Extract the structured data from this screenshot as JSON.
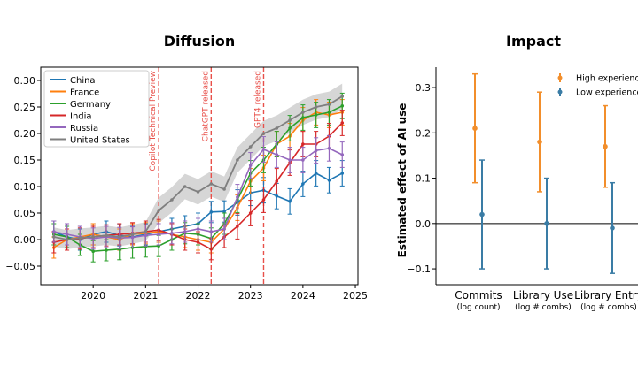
{
  "chart_data": [
    {
      "type": "line",
      "title": "Diffusion",
      "xlabel": "",
      "ylabel": "",
      "xlim": [
        2019.0,
        2025.05
      ],
      "ylim": [
        -0.085,
        0.325
      ],
      "xticks": [
        "2020",
        "2021",
        "2022",
        "2023",
        "2024",
        "2025"
      ],
      "xtick_values": [
        2020,
        2021,
        2022,
        2023,
        2024,
        2025
      ],
      "yticks": [
        "−0.05",
        "0.00",
        "0.05",
        "0.10",
        "0.15",
        "0.20",
        "0.25",
        "0.30"
      ],
      "ytick_values": [
        -0.05,
        0.0,
        0.05,
        0.1,
        0.15,
        0.2,
        0.25,
        0.3
      ],
      "legend_position": "top-left",
      "x": [
        2019.25,
        2019.5,
        2019.75,
        2020.0,
        2020.25,
        2020.5,
        2020.75,
        2021.0,
        2021.25,
        2021.5,
        2021.75,
        2022.0,
        2022.25,
        2022.5,
        2022.75,
        2023.0,
        2023.25,
        2023.5,
        2023.75,
        2024.0,
        2024.25,
        2024.5,
        2024.75
      ],
      "series": [
        {
          "name": "China",
          "color": "#1f77b4",
          "err": 0.02,
          "values": [
            0.015,
            0.005,
            0.0,
            0.01,
            0.015,
            0.008,
            0.005,
            0.01,
            0.015,
            0.02,
            0.025,
            0.03,
            0.052,
            0.053,
            0.07,
            0.088,
            0.093,
            0.082,
            0.072,
            0.105,
            0.125,
            0.112,
            0.125
          ]
        },
        {
          "name": "France",
          "color": "#ff7f0e",
          "err": 0.02,
          "values": [
            -0.015,
            0.0,
            0.005,
            0.01,
            0.005,
            0.0,
            0.01,
            0.012,
            0.015,
            0.01,
            0.005,
            0.0,
            -0.005,
            0.02,
            0.06,
            0.11,
            0.135,
            0.18,
            0.195,
            0.225,
            0.24,
            0.235,
            0.24
          ]
        },
        {
          "name": "Germany",
          "color": "#2ca02c",
          "err": 0.02,
          "values": [
            0.01,
            0.005,
            -0.01,
            -0.022,
            -0.02,
            -0.018,
            -0.015,
            -0.013,
            -0.012,
            0.0,
            0.012,
            0.01,
            0.002,
            0.03,
            0.075,
            0.125,
            0.15,
            0.18,
            0.21,
            0.23,
            0.235,
            0.24,
            0.252
          ]
        },
        {
          "name": "India",
          "color": "#d62728",
          "err": 0.02,
          "values": [
            -0.005,
            0.0,
            0.002,
            0.005,
            0.008,
            0.01,
            0.012,
            0.015,
            0.018,
            0.01,
            0.0,
            -0.005,
            -0.018,
            0.005,
            0.025,
            0.05,
            0.075,
            0.11,
            0.145,
            0.18,
            0.18,
            0.195,
            0.22
          ]
        },
        {
          "name": "Russia",
          "color": "#9467bd",
          "err": 0.02,
          "values": [
            0.015,
            0.01,
            0.005,
            0.002,
            0.005,
            0.003,
            0.004,
            0.008,
            0.01,
            0.012,
            0.015,
            0.02,
            0.015,
            0.02,
            0.08,
            0.14,
            0.17,
            0.16,
            0.15,
            0.15,
            0.168,
            0.172,
            0.16
          ]
        },
        {
          "name": "United States",
          "color": "#7f7f7f",
          "err": 0.015,
          "values": [
            0.005,
            0.0,
            0.003,
            0.005,
            0.008,
            0.005,
            0.01,
            0.015,
            0.055,
            0.075,
            0.1,
            0.09,
            0.105,
            0.095,
            0.15,
            0.175,
            0.2,
            0.21,
            0.225,
            0.24,
            0.25,
            0.255,
            0.27
          ]
        }
      ],
      "vlines": [
        {
          "x": 2021.25,
          "label": "Copilot Technical Preview",
          "label_side": "left",
          "color": "#e8504a"
        },
        {
          "x": 2022.25,
          "label": "ChatGPT released",
          "label_side": "left",
          "color": "#e8504a"
        },
        {
          "x": 2023.25,
          "label": "GPT4 released",
          "label_side": "left",
          "color": "#e8504a"
        }
      ]
    },
    {
      "type": "errorbar",
      "title": "Impact",
      "ylabel": "Estimated effect of AI use",
      "ylim": [
        -0.135,
        0.345
      ],
      "yticks": [
        "−0.1",
        "0.0",
        "0.1",
        "0.2",
        "0.3"
      ],
      "ytick_values": [
        -0.1,
        0.0,
        0.1,
        0.2,
        0.3
      ],
      "legend_position": "top-right",
      "categories": [
        "Commits",
        "Library Use",
        "Library Entry"
      ],
      "category_sublabels": [
        "(log count)",
        "(log # combs)",
        "(log # combs)"
      ],
      "series": [
        {
          "name": "High experience",
          "color": "#f28e2b",
          "values": [
            0.21,
            0.18,
            0.17
          ],
          "lower": [
            0.09,
            0.07,
            0.08
          ],
          "upper": [
            0.33,
            0.29,
            0.26
          ]
        },
        {
          "name": "Low experience",
          "color": "#3a7ca5",
          "values": [
            0.02,
            0.0,
            -0.01
          ],
          "lower": [
            -0.1,
            -0.1,
            -0.11
          ],
          "upper": [
            0.14,
            0.1,
            0.09
          ]
        }
      ]
    }
  ]
}
